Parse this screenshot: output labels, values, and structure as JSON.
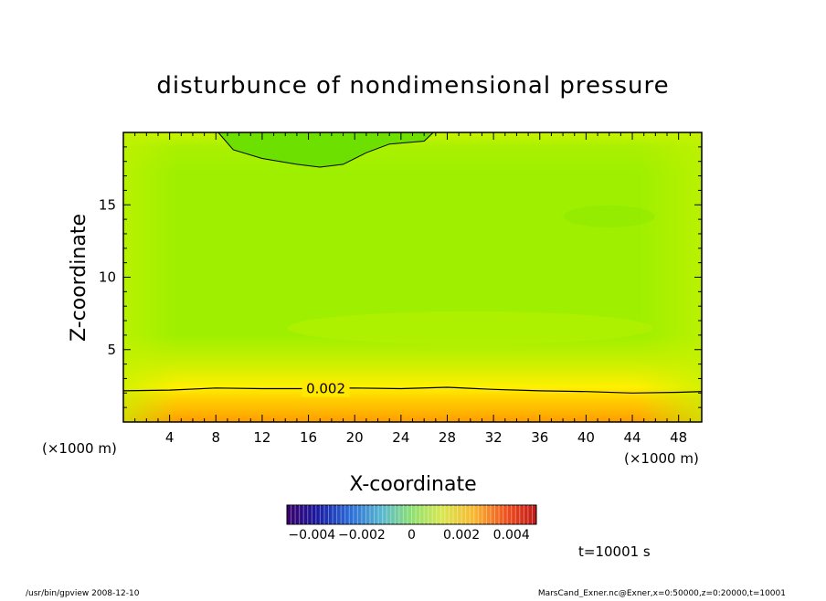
{
  "chart_data": {
    "type": "heatmap",
    "title": "disturbunce of nondimensional pressure",
    "xlabel": "X-coordinate",
    "ylabel": "Z-coordinate",
    "x_unit": "(×1000 m)",
    "y_unit": "(×1000 m)",
    "xlim": [
      0,
      50
    ],
    "ylim": [
      0,
      20
    ],
    "x_ticks": [
      4,
      8,
      12,
      16,
      20,
      24,
      28,
      32,
      36,
      40,
      44,
      48
    ],
    "y_ticks": [
      5,
      10,
      15
    ],
    "contour_labels": [
      {
        "value": "0.002",
        "x": 17.5,
        "z": 2.3
      }
    ],
    "colorbar": {
      "range": [
        -0.005,
        0.005
      ],
      "tick_labels": [
        "−0.004",
        "−0.002",
        "0",
        "0.002",
        "0.004"
      ],
      "tick_values": [
        -0.004,
        -0.002,
        0,
        0.002,
        0.004
      ]
    },
    "time_label": "t=10001 s"
  },
  "footer": {
    "left": "/usr/bin/gpview   2008-12-10",
    "right": "MarsCand_Exner.nc@Exner,x=0:50000,z=0:20000,t=10001"
  },
  "colors": {
    "field_mid": "#9ef000",
    "field_top": "#c6f800",
    "field_low": "#e0f000",
    "field_yellow": "#ffd800",
    "field_orange": "#ffa000",
    "min_dark": "#5cdc00"
  }
}
